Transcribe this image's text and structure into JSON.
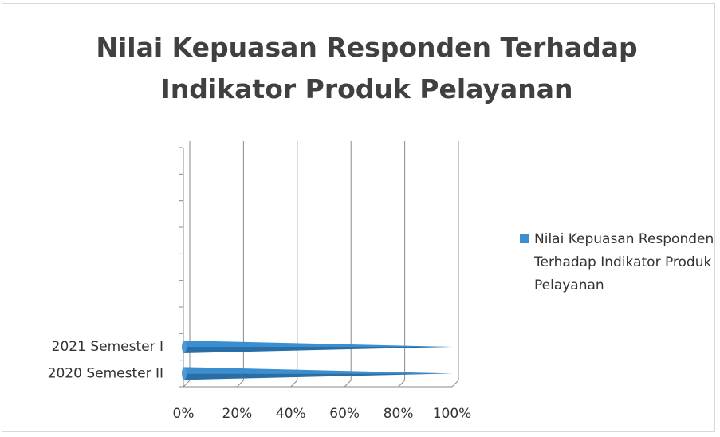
{
  "chart_data": {
    "type": "bar",
    "orientation": "horizontal",
    "title": "Nilai Kepuasan Responden Terhadap Indikator Produk Pelayanan",
    "categories": [
      "2020 Semester II",
      "2021 Semester I",
      null,
      null,
      null,
      null,
      null,
      null,
      null
    ],
    "series": [
      {
        "name": "Nilai Kepuasan Responden Terhadap Indikator Produk Pelayanan",
        "color": "#3b8fd0",
        "values": [
          99,
          99,
          null,
          null,
          null,
          null,
          null,
          null,
          null
        ]
      }
    ],
    "xlim": [
      0,
      100
    ],
    "xticks": [
      {
        "value": 0,
        "label": "0%"
      },
      {
        "value": 20,
        "label": "20%"
      },
      {
        "value": 40,
        "label": "40%"
      },
      {
        "value": 60,
        "label": "60%"
      },
      {
        "value": 80,
        "label": "80%"
      },
      {
        "value": 100,
        "label": "100%"
      }
    ],
    "grid": true,
    "legend": "right"
  }
}
